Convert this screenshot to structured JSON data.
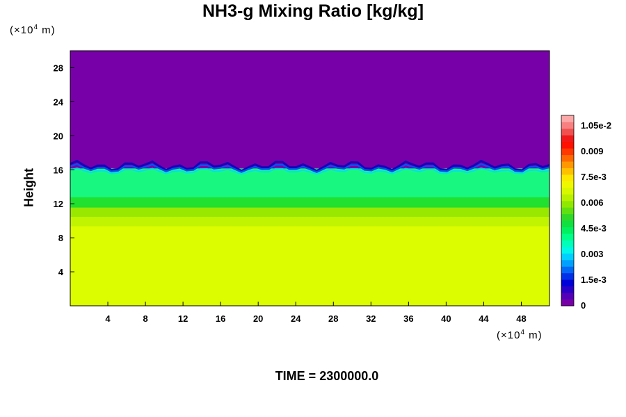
{
  "chart_data": {
    "type": "heatmap",
    "title": "NH3-g Mixing Ratio [kg/kg]",
    "ylabel": "Height",
    "x_unit": {
      "prefix": "(×10",
      "exp": "4",
      "suffix": " m)"
    },
    "y_unit": {
      "prefix": "(×10",
      "exp": "4",
      "suffix": " m)"
    },
    "xlim": [
      0,
      51
    ],
    "ylim": [
      0,
      30
    ],
    "xticks": [
      4,
      8,
      12,
      16,
      20,
      24,
      28,
      32,
      36,
      40,
      44,
      48
    ],
    "yticks": [
      4,
      8,
      12,
      16,
      20,
      24,
      28
    ],
    "time_label": "TIME = 2300000.0",
    "colorbar": {
      "min": 0,
      "max": 0.0111,
      "ticks": [
        {
          "value": 0,
          "label": "0"
        },
        {
          "value": 0.0015,
          "label": "1.5e-3"
        },
        {
          "value": 0.003,
          "label": "0.003"
        },
        {
          "value": 0.0045,
          "label": "4.5e-3"
        },
        {
          "value": 0.006,
          "label": "0.006"
        },
        {
          "value": 0.0075,
          "label": "7.5e-3"
        },
        {
          "value": 0.009,
          "label": "0.009"
        },
        {
          "value": 0.0105,
          "label": "1.05e-2"
        }
      ],
      "colors": [
        "#7800a8",
        "#5400b8",
        "#2800c8",
        "#0000d8",
        "#0030e8",
        "#0068f4",
        "#00a0ff",
        "#00d0ff",
        "#00f8e8",
        "#00ffb8",
        "#00ff88",
        "#00f060",
        "#10e040",
        "#30d828",
        "#60e010",
        "#90e800",
        "#b8f000",
        "#d8f800",
        "#f0f800",
        "#ffe800",
        "#ffc000",
        "#ff9800",
        "#ff6800",
        "#ff3800",
        "#ff1000",
        "#f01818",
        "#f05050",
        "#f88080",
        "#fca8a8"
      ]
    },
    "layers": [
      {
        "y_from": 0,
        "y_to": 9.4,
        "value": 0.0077,
        "color": "#dcfc00"
      },
      {
        "y_from": 9.4,
        "y_to": 10.5,
        "value": 0.0073,
        "color": "#c0f400"
      },
      {
        "y_from": 10.5,
        "y_to": 11.6,
        "value": 0.0067,
        "color": "#98e800"
      },
      {
        "y_from": 11.6,
        "y_to": 12.8,
        "value": 0.0058,
        "color": "#20e030"
      },
      {
        "y_from": 12.8,
        "y_to": 16.2,
        "value": 0.0048,
        "color": "#18f880"
      },
      {
        "y_from": 16.2,
        "y_to": 30,
        "value": 0,
        "color": "#7800a8"
      }
    ]
  }
}
